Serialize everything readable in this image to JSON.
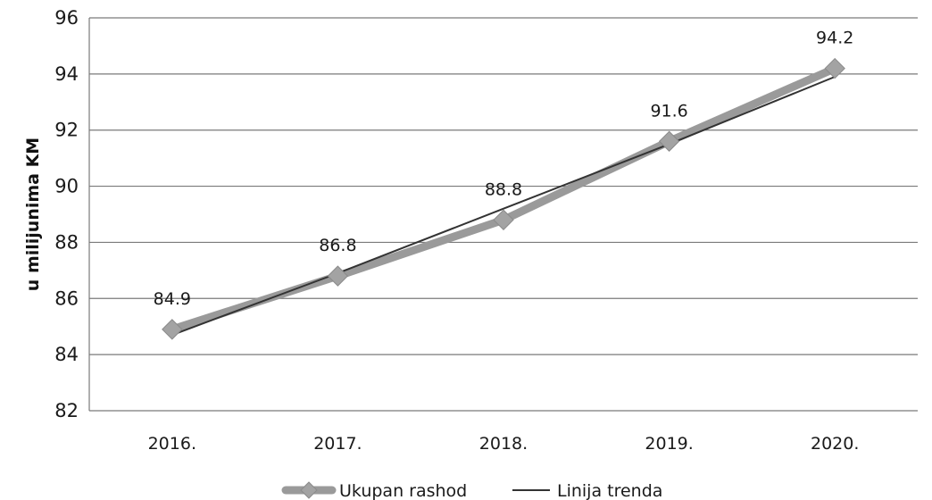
{
  "chart_data": {
    "type": "line",
    "title": "",
    "xlabel": "",
    "ylabel": "u milijunima KM",
    "categories": [
      "2016.",
      "2017.",
      "2018.",
      "2019.",
      "2020."
    ],
    "ylim": [
      82,
      96
    ],
    "yticks": [
      "82",
      "84",
      "86",
      "88",
      "90",
      "92",
      "94",
      "96"
    ],
    "grid": true,
    "legend_position": "bottom",
    "series": [
      {
        "name": "Ukupan rashod",
        "values": [
          84.9,
          86.8,
          88.8,
          91.6,
          94.2
        ],
        "data_labels": [
          "84.9",
          "86.8",
          "88.8",
          "91.6",
          "94.2"
        ],
        "color": "#9a9a9a",
        "marker": "diamond"
      },
      {
        "name": "Linija trenda",
        "values": [
          84.7,
          86.9,
          89.2,
          91.5,
          93.9
        ],
        "color": "#333333"
      }
    ]
  }
}
